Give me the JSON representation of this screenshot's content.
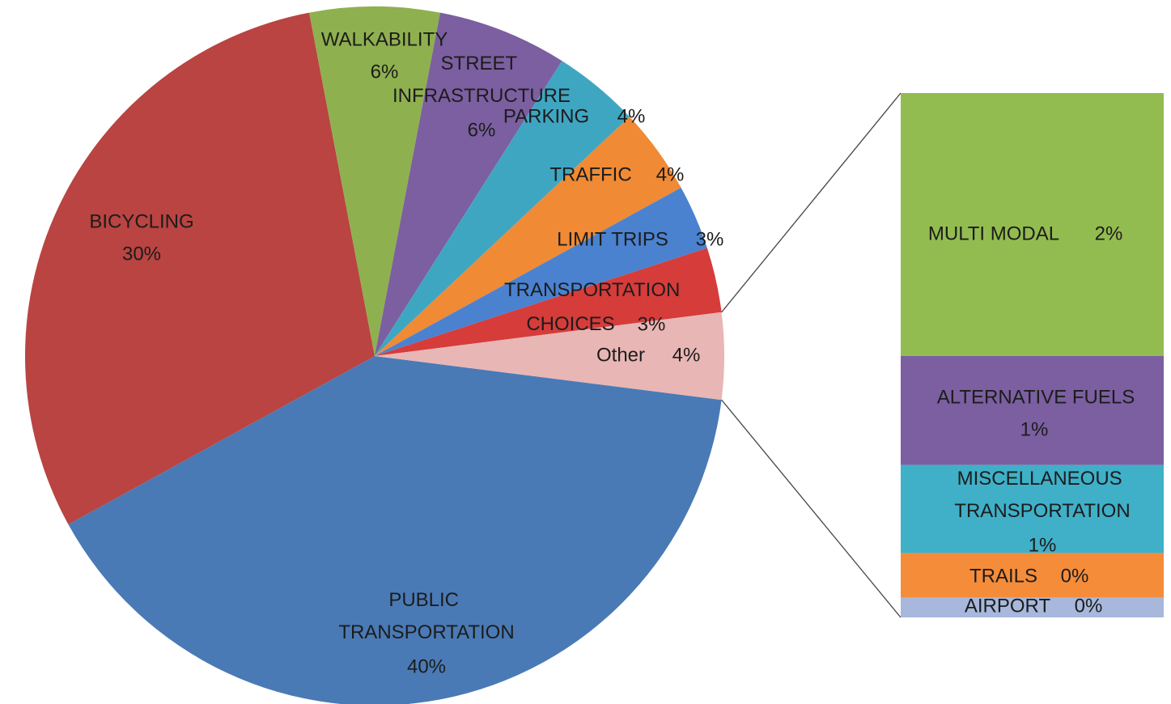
{
  "chart_data": {
    "type": "bar-of-pie",
    "categories": [
      "PUBLIC TRANSPORTATION",
      "BICYCLING",
      "WALKABILITY",
      "STREET INFRASTRUCTURE",
      "PARKING",
      "TRAFFIC",
      "LIMIT TRIPS",
      "TRANSPORTATION CHOICES",
      "Other"
    ],
    "values": [
      40,
      30,
      6,
      6,
      4,
      4,
      3,
      3,
      4
    ],
    "value_labels": [
      "40%",
      "30%",
      "6%",
      "6%",
      "4%",
      "4%",
      "3%",
      "3%",
      "4%"
    ],
    "colors": [
      "#4a7ab5",
      "#b94441",
      "#8fb04f",
      "#7b5fa0",
      "#3fa6c2",
      "#f08a34",
      "#4a82d0",
      "#d63c3a",
      "#e8b6b5"
    ],
    "bar": {
      "categories": [
        "MULTI MODAL",
        "ALTERNATIVE FUELS",
        "MISCELLANEOUS TRANSPORTATION",
        "TRAILS",
        "AIRPORT"
      ],
      "values": [
        2.0,
        0.83,
        0.67,
        0.34,
        0.15
      ],
      "value_labels": [
        "2%",
        "1%",
        "1%",
        "0%",
        "0%"
      ],
      "colors": [
        "#93bc50",
        "#7b5fa0",
        "#3fb0c8",
        "#f58c3a",
        "#a7b8dc"
      ]
    }
  }
}
